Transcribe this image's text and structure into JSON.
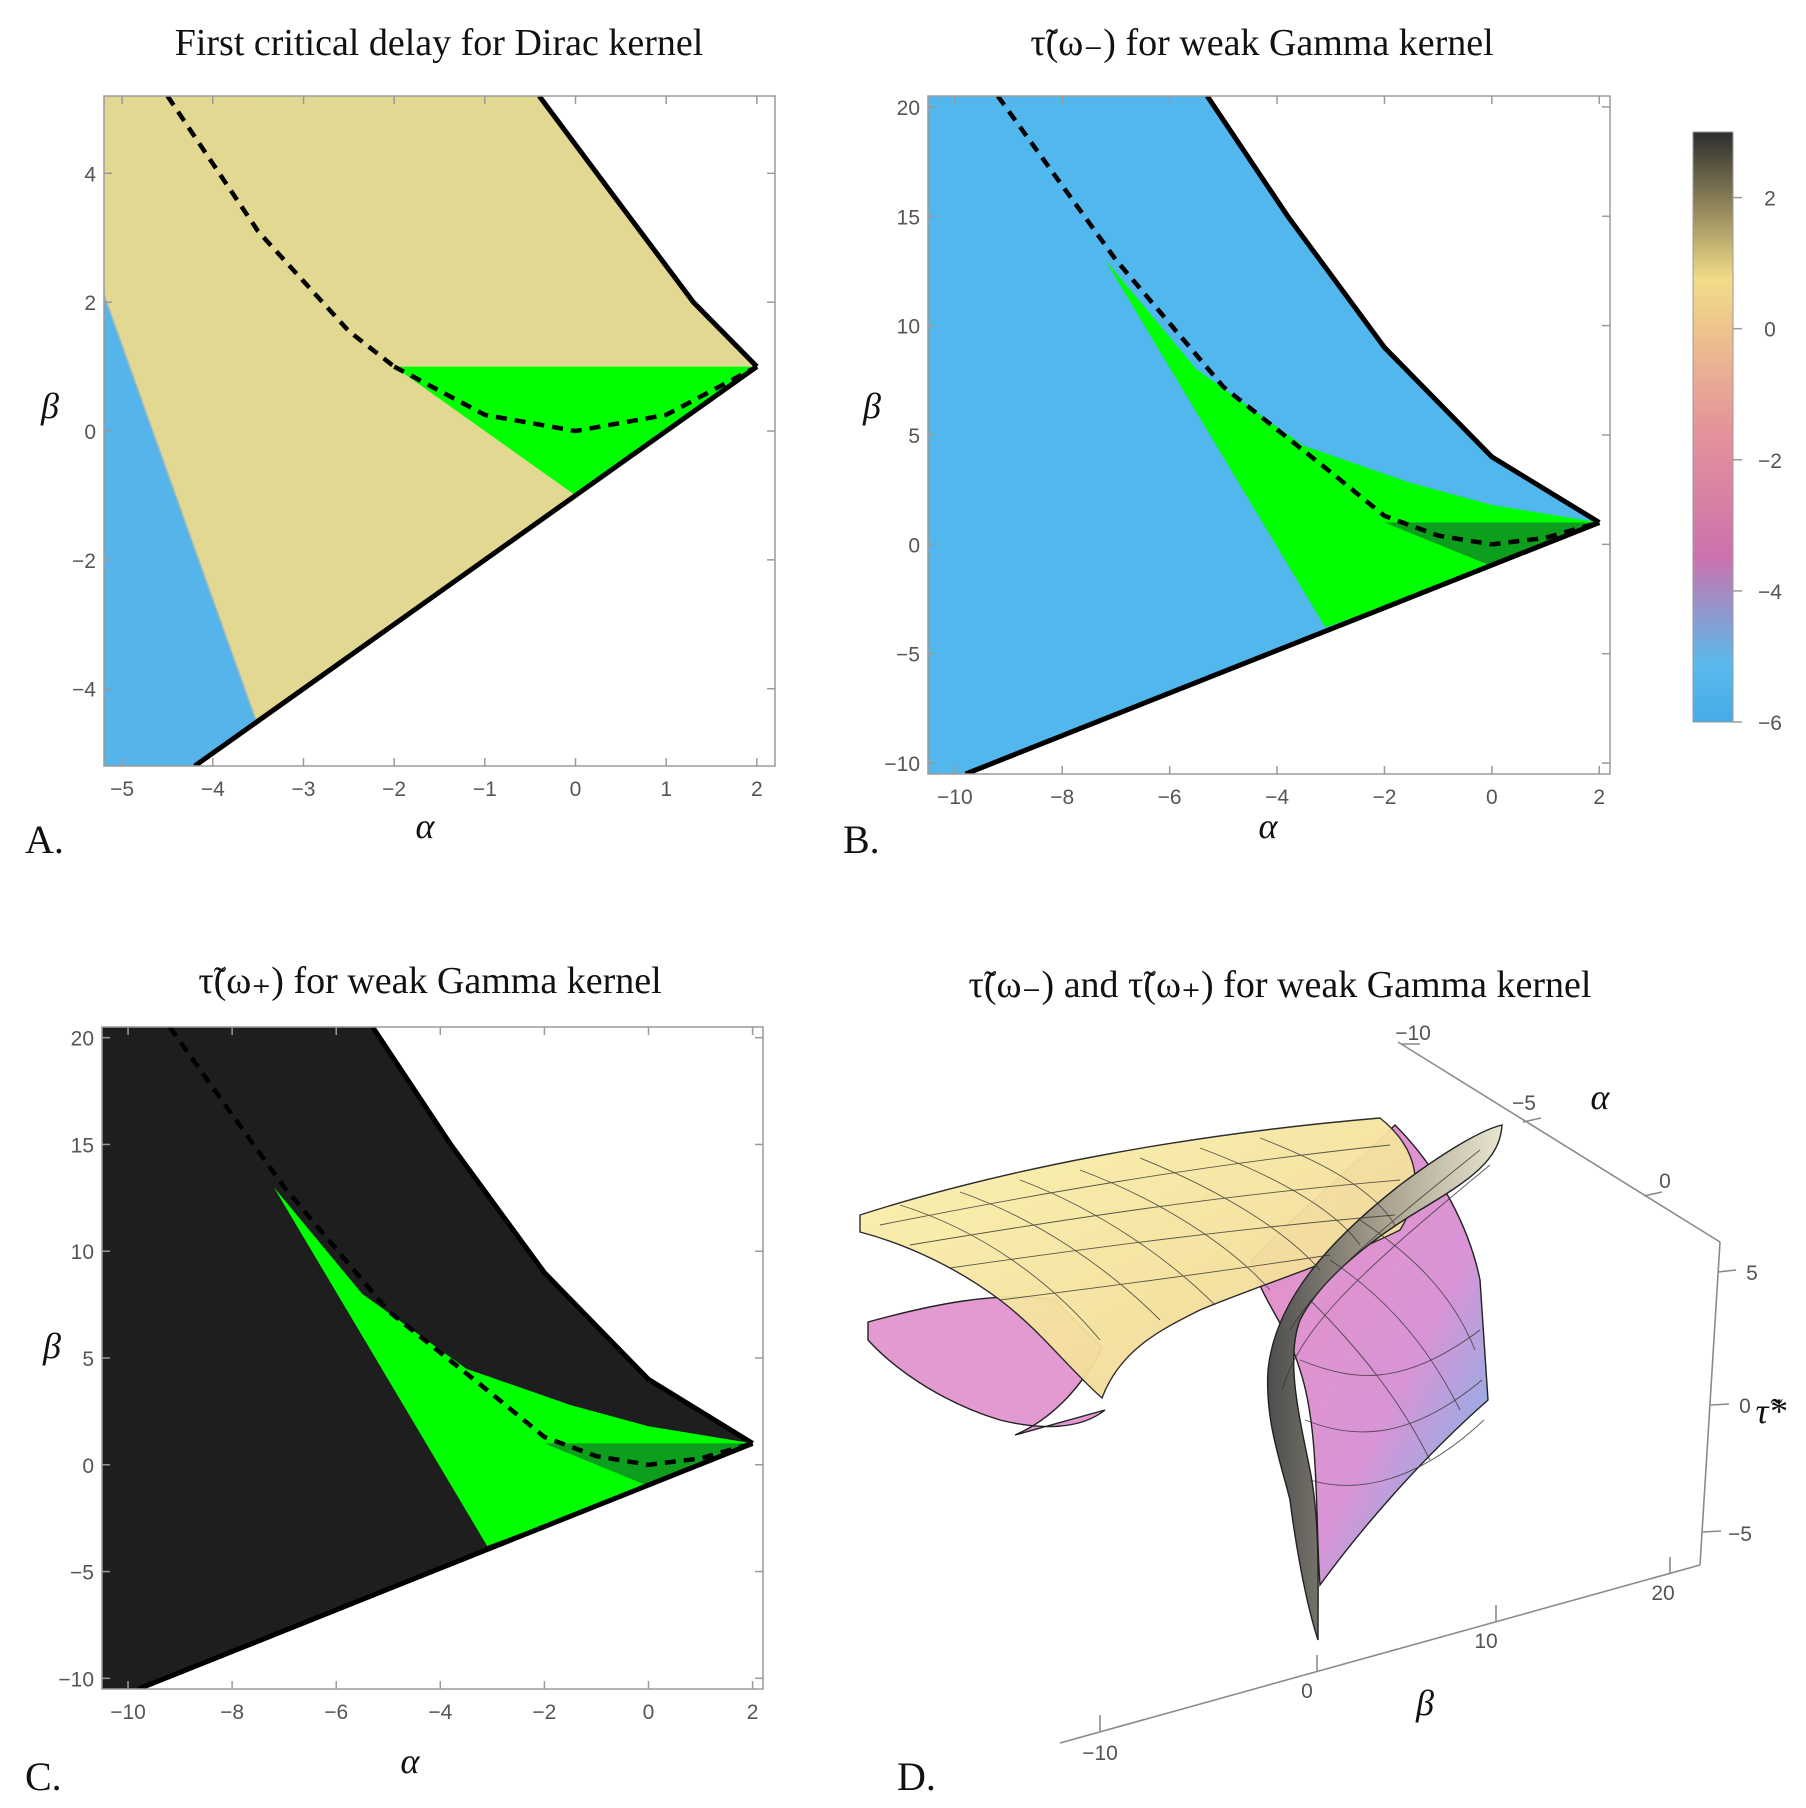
{
  "colorbar": {
    "gradient_colors": [
      "#2d2d2d",
      "#f2dc87",
      "#e5949a",
      "#cc72ad",
      "#5ab9ec"
    ],
    "ticks": [
      "2",
      "0",
      "−2",
      "−4",
      "−6"
    ]
  },
  "region_colors": {
    "green": "#00ff00",
    "dark_green": "#0e9e1e"
  },
  "chart_data": [
    {
      "panel": "A.",
      "type": "heatmap",
      "title": "First critical delay for Dirac kernel",
      "xlabel": "α",
      "ylabel": "β",
      "xlim": [
        -5.2,
        2.2
      ],
      "ylim": [
        -5.2,
        5.2
      ],
      "xticks": [
        -5,
        -4,
        -3,
        -2,
        -1,
        0,
        1,
        2
      ],
      "yticks": [
        -4,
        -2,
        0,
        2,
        4
      ],
      "xtick_labels": [
        "−5",
        "−4",
        "−3",
        "−2",
        "−1",
        "0",
        "1",
        "2"
      ],
      "ytick_labels": [
        "−4",
        "−2",
        "0",
        "2",
        "4"
      ],
      "boundaries": {
        "lower_line": [
          [
            -4.2,
            -5.2
          ],
          [
            2,
            1
          ]
        ],
        "upper_curve": [
          [
            -0.4,
            5.2
          ],
          [
            0.5,
            3.5
          ],
          [
            1.3,
            2.0
          ],
          [
            2,
            1
          ]
        ],
        "dashed_curve": [
          [
            -4.5,
            5.2
          ],
          [
            -3.5,
            3.1
          ],
          [
            -2.5,
            1.55
          ],
          [
            -2,
            1
          ]
        ],
        "dashed_parabola": [
          [
            -2,
            1
          ],
          [
            -1,
            0.25
          ],
          [
            0,
            0
          ],
          [
            1,
            0.25
          ],
          [
            2,
            1
          ]
        ]
      },
      "green_region": [
        [
          -2,
          1
        ],
        [
          2,
          1
        ],
        [
          0,
          -1
        ]
      ]
    },
    {
      "panel": "B.",
      "type": "heatmap",
      "title": "τ̃(ω₋) for weak Gamma kernel",
      "xlabel": "α",
      "ylabel": "β",
      "xlim": [
        -10.5,
        2.2
      ],
      "ylim": [
        -10.5,
        20.5
      ],
      "xticks": [
        -10,
        -8,
        -6,
        -4,
        -2,
        0,
        2
      ],
      "yticks": [
        -10,
        -5,
        0,
        5,
        10,
        15,
        20
      ],
      "xtick_labels": [
        "−10",
        "−8",
        "−6",
        "−4",
        "−2",
        "0",
        "2"
      ],
      "ytick_labels": [
        "−10",
        "−5",
        "0",
        "5",
        "10",
        "15",
        "20"
      ],
      "boundaries": {
        "lower_line": [
          [
            -9.8,
            -10.5
          ],
          [
            2,
            1
          ]
        ],
        "upper_curve": [
          [
            -5.3,
            20.5
          ],
          [
            -3.8,
            15
          ],
          [
            -2,
            9
          ],
          [
            0,
            4
          ],
          [
            2,
            1
          ]
        ],
        "dashed_curve": [
          [
            -9.2,
            20.5
          ],
          [
            -8,
            16.4
          ],
          [
            -7,
            13
          ],
          [
            -5,
            7.2
          ],
          [
            -3,
            3.3
          ],
          [
            -2,
            1.3
          ],
          [
            -1,
            0.4
          ],
          [
            0,
            0
          ],
          [
            1,
            0.3
          ],
          [
            2,
            1
          ]
        ]
      },
      "green_region": [
        [
          -7.2,
          13
        ],
        [
          -5.5,
          8
        ],
        [
          -3.5,
          4.5
        ],
        [
          -1.5,
          2.8
        ],
        [
          0,
          1.8
        ],
        [
          2,
          1
        ],
        [
          0,
          -1
        ],
        [
          -3.1,
          -3.8
        ]
      ],
      "dark_green_region": [
        [
          -2,
          1
        ],
        [
          2,
          1
        ],
        [
          0,
          -1
        ]
      ]
    },
    {
      "panel": "C.",
      "type": "heatmap",
      "title": "τ̃(ω₊) for weak Gamma kernel",
      "xlabel": "α",
      "ylabel": "β",
      "xlim": [
        -10.5,
        2.2
      ],
      "ylim": [
        -10.5,
        20.5
      ],
      "xticks": [
        -10,
        -8,
        -6,
        -4,
        -2,
        0,
        2
      ],
      "yticks": [
        -10,
        -5,
        0,
        5,
        10,
        15,
        20
      ],
      "xtick_labels": [
        "−10",
        "−8",
        "−6",
        "−4",
        "−2",
        "0",
        "2"
      ],
      "ytick_labels": [
        "−10",
        "−5",
        "0",
        "5",
        "10",
        "15",
        "20"
      ],
      "boundaries": {
        "lower_line": [
          [
            -9.8,
            -10.5
          ],
          [
            2,
            1
          ]
        ],
        "upper_curve": [
          [
            -5.3,
            20.5
          ],
          [
            -3.8,
            15
          ],
          [
            -2,
            9
          ],
          [
            0,
            4
          ],
          [
            2,
            1
          ]
        ],
        "dashed_curve": [
          [
            -9.2,
            20.5
          ],
          [
            -8,
            16.4
          ],
          [
            -7,
            13
          ],
          [
            -5,
            7.2
          ],
          [
            -3,
            3.3
          ],
          [
            -2,
            1.3
          ],
          [
            -1,
            0.4
          ],
          [
            0,
            0
          ],
          [
            1,
            0.3
          ],
          [
            2,
            1
          ]
        ]
      },
      "green_region": [
        [
          -7.2,
          13
        ],
        [
          -5.5,
          8
        ],
        [
          -3.5,
          4.5
        ],
        [
          -1.5,
          2.8
        ],
        [
          0,
          1.8
        ],
        [
          2,
          1
        ],
        [
          0,
          -1
        ],
        [
          -3.1,
          -3.8
        ]
      ],
      "dark_green_region": [
        [
          -2,
          1
        ],
        [
          2,
          1
        ],
        [
          0,
          -1
        ]
      ]
    },
    {
      "panel": "D.",
      "type": "surface",
      "title": "τ̃(ω₋) and τ̃(ω₊) for weak Gamma kernel",
      "xlabel": "α",
      "ylabel": "β",
      "zlabel": "τ̃*",
      "alpha_ticks": [
        "−10",
        "−5",
        "0"
      ],
      "beta_ticks": [
        "−10",
        "0",
        "10",
        "20"
      ],
      "z_ticks": [
        "5",
        "0",
        "−5"
      ]
    }
  ]
}
